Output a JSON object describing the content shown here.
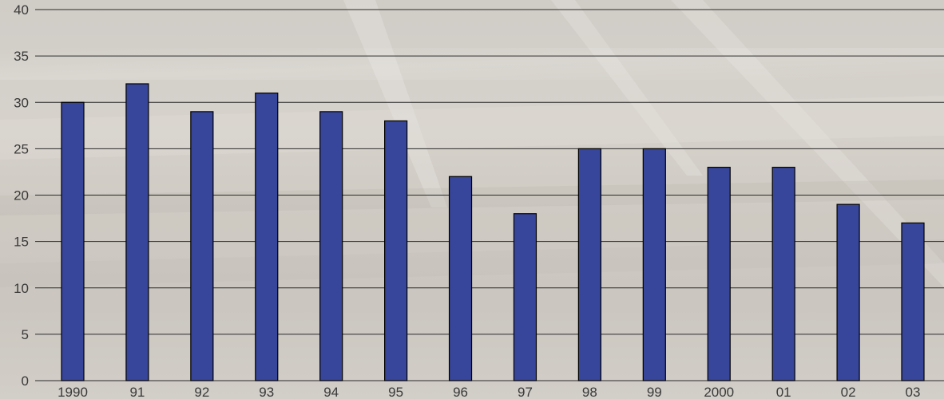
{
  "chart_data": {
    "type": "bar",
    "categories": [
      "1990",
      "91",
      "92",
      "93",
      "94",
      "95",
      "96",
      "97",
      "98",
      "99",
      "2000",
      "01",
      "02",
      "03"
    ],
    "values": [
      30,
      32,
      29,
      31,
      29,
      28,
      22,
      18,
      25,
      25,
      23,
      23,
      19,
      17
    ],
    "ylim": [
      0,
      40
    ],
    "yticks": [
      0,
      5,
      10,
      15,
      20,
      25,
      30,
      35,
      40
    ],
    "grid": true,
    "bar_color": "#37459a",
    "bar_outline_color": "#000000",
    "gridline_color": "#2b2b2b",
    "label_color": "#3a3a3a"
  }
}
